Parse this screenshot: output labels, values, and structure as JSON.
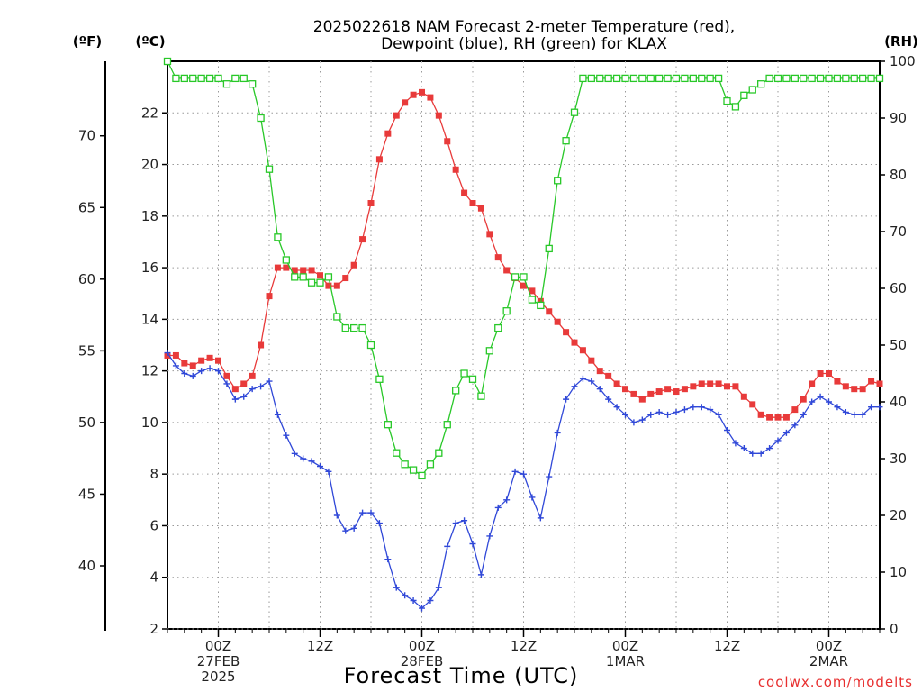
{
  "chart_data": {
    "type": "line",
    "title_line1": "2025022618 NAM Forecast 2-meter Temperature (red),",
    "title_line2": "Dewpoint (blue), RH (green) for KLAX",
    "xlabel": "Forecast Time (UTC)",
    "source": "coolwx.com/modelts",
    "left_unit_f": "(ºF)",
    "left_unit_c": "(ºC)",
    "right_unit": "(RH)",
    "celsius_axis": {
      "ylim": [
        2,
        24
      ],
      "ticks": [
        "2",
        "4",
        "6",
        "8",
        "10",
        "12",
        "14",
        "16",
        "18",
        "20",
        "22"
      ]
    },
    "fahrenheit_axis": {
      "ticks": [
        "40",
        "45",
        "50",
        "55",
        "60",
        "65",
        "70"
      ]
    },
    "rh_axis": {
      "ylim": [
        0,
        100
      ],
      "ticks": [
        "0",
        "10",
        "20",
        "30",
        "40",
        "50",
        "60",
        "70",
        "80",
        "90",
        "100"
      ]
    },
    "x_axis": {
      "units": "forecast hours from 2025-02-26 18Z",
      "xlim": [
        0,
        84
      ],
      "ticks": [
        {
          "hour": 6,
          "lines": [
            "00Z",
            "27FEB",
            "2025"
          ]
        },
        {
          "hour": 18,
          "lines": [
            "12Z"
          ]
        },
        {
          "hour": 30,
          "lines": [
            "00Z",
            "28FEB"
          ]
        },
        {
          "hour": 42,
          "lines": [
            "12Z"
          ]
        },
        {
          "hour": 54,
          "lines": [
            "00Z",
            "1MAR"
          ]
        },
        {
          "hour": 66,
          "lines": [
            "12Z"
          ]
        },
        {
          "hour": 78,
          "lines": [
            "00Z",
            "2MAR"
          ]
        }
      ]
    },
    "grid": true,
    "hours": [
      0,
      1,
      2,
      3,
      4,
      5,
      6,
      7,
      8,
      9,
      10,
      11,
      12,
      13,
      14,
      15,
      16,
      17,
      18,
      19,
      20,
      21,
      22,
      23,
      24,
      25,
      26,
      27,
      28,
      29,
      30,
      31,
      32,
      33,
      34,
      35,
      36,
      37,
      38,
      39,
      40,
      41,
      42,
      43,
      44,
      45,
      46,
      47,
      48,
      49,
      50,
      51,
      52,
      53,
      54,
      55,
      56,
      57,
      58,
      59,
      60,
      61,
      62,
      63,
      64,
      65,
      66,
      67,
      68,
      69,
      70,
      71,
      72,
      73,
      74,
      75,
      76,
      77,
      78,
      79,
      80,
      81,
      82,
      83,
      84
    ],
    "series": [
      {
        "color": "#e83a3a",
        "marker": "filled-square",
        "axis": "celsius",
        "values": [
          12.6,
          12.6,
          12.3,
          12.2,
          12.4,
          12.5,
          12.4,
          11.8,
          11.3,
          11.5,
          11.8,
          13.0,
          14.9,
          16.0,
          16.0,
          15.9,
          15.9,
          15.9,
          15.7,
          15.3,
          15.3,
          15.6,
          16.1,
          17.1,
          18.5,
          20.2,
          21.2,
          21.9,
          22.4,
          22.7,
          22.8,
          22.6,
          21.9,
          20.9,
          19.8,
          18.9,
          18.5,
          18.3,
          17.3,
          16.4,
          15.9,
          15.6,
          15.3,
          15.1,
          14.7,
          14.3,
          13.9,
          13.5,
          13.1,
          12.8,
          12.4,
          12.0,
          11.8,
          11.5,
          11.3,
          11.1,
          10.9,
          11.1,
          11.2,
          11.3,
          11.2,
          11.3,
          11.4,
          11.5,
          11.5,
          11.5,
          11.4,
          11.4,
          11.0,
          10.7,
          10.3,
          10.2,
          10.2,
          10.2,
          10.5,
          10.9,
          11.5,
          11.9,
          11.9,
          11.6,
          11.4,
          11.3,
          11.3,
          11.6,
          11.5
        ]
      },
      {
        "color": "#3048d8",
        "marker": "plus",
        "axis": "celsius",
        "values": [
          12.7,
          12.2,
          11.9,
          11.8,
          12.0,
          12.1,
          12.0,
          11.5,
          10.9,
          11.0,
          11.3,
          11.4,
          11.6,
          10.3,
          9.5,
          8.8,
          8.6,
          8.5,
          8.3,
          8.1,
          6.4,
          5.8,
          5.9,
          6.5,
          6.5,
          6.1,
          4.7,
          3.6,
          3.3,
          3.1,
          2.8,
          3.1,
          3.6,
          5.2,
          6.1,
          6.2,
          5.3,
          4.1,
          5.6,
          6.7,
          7.0,
          8.1,
          8.0,
          7.1,
          6.3,
          7.9,
          9.6,
          10.9,
          11.4,
          11.7,
          11.6,
          11.3,
          10.9,
          10.6,
          10.3,
          10.0,
          10.1,
          10.3,
          10.4,
          10.3,
          10.4,
          10.5,
          10.6,
          10.6,
          10.5,
          10.3,
          9.7,
          9.2,
          9.0,
          8.8,
          8.8,
          9.0,
          9.3,
          9.6,
          9.9,
          10.3,
          10.8,
          11.0,
          10.8,
          10.6,
          10.4,
          10.3,
          10.3,
          10.6,
          10.6
        ]
      },
      {
        "color": "#28c828",
        "marker": "open-square",
        "axis": "rh",
        "values": [
          100,
          97,
          97,
          97,
          97,
          97,
          97,
          96,
          97,
          97,
          96,
          90,
          81,
          69,
          65,
          62,
          62,
          61,
          61,
          62,
          55,
          53,
          53,
          53,
          50,
          44,
          36,
          31,
          29,
          28,
          27,
          29,
          31,
          36,
          42,
          45,
          44,
          41,
          49,
          53,
          56,
          62,
          62,
          58,
          57,
          67,
          79,
          86,
          91,
          97,
          97,
          97,
          97,
          97,
          97,
          97,
          97,
          97,
          97,
          97,
          97,
          97,
          97,
          97,
          97,
          97,
          93,
          92,
          94,
          95,
          96,
          97,
          97,
          97,
          97,
          97,
          97,
          97,
          97,
          97,
          97,
          97,
          97,
          97,
          97
        ]
      }
    ]
  }
}
